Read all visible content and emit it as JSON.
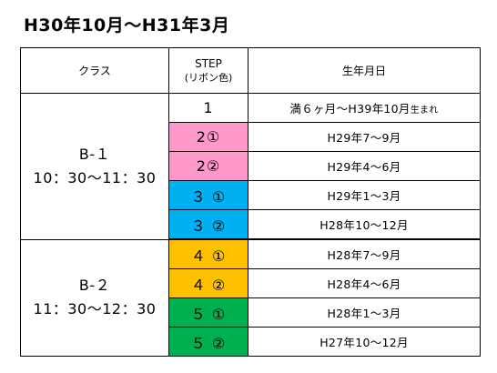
{
  "title": "H30年10月～H31年3月",
  "headers": {
    "class": "クラス",
    "step": "STEP",
    "step_sub": "(リボン色)",
    "birth": "生年月日"
  },
  "groups": [
    {
      "name": "B-１",
      "time": "10：30～11：30"
    },
    {
      "name": "B-２",
      "time": "11：30～12：30"
    }
  ],
  "rows": [
    {
      "step": "1",
      "color": "#ffffff",
      "birth": "満６ヶ月～H39年10月",
      "birth_suffix": "生まれ"
    },
    {
      "step": "2①",
      "color": "#ff99cc",
      "birth": "H29年7～9月"
    },
    {
      "step": "2②",
      "color": "#ff99cc",
      "birth": "H29年4～6月"
    },
    {
      "step": "３ ①",
      "color": "#00b0f0",
      "birth": "H29年1～3月"
    },
    {
      "step": "３ ②",
      "color": "#00b0f0",
      "birth": "H28年10～12月"
    },
    {
      "step": "４ ①",
      "color": "#ffc000",
      "birth": "H28年7～9月"
    },
    {
      "step": "４ ②",
      "color": "#ffc000",
      "birth": "H28年4～6月"
    },
    {
      "step": "５ ①",
      "color": "#00b050",
      "birth": "H28年1～3月"
    },
    {
      "step": "５ ②",
      "color": "#00b050",
      "birth": "H27年10～12月"
    }
  ]
}
